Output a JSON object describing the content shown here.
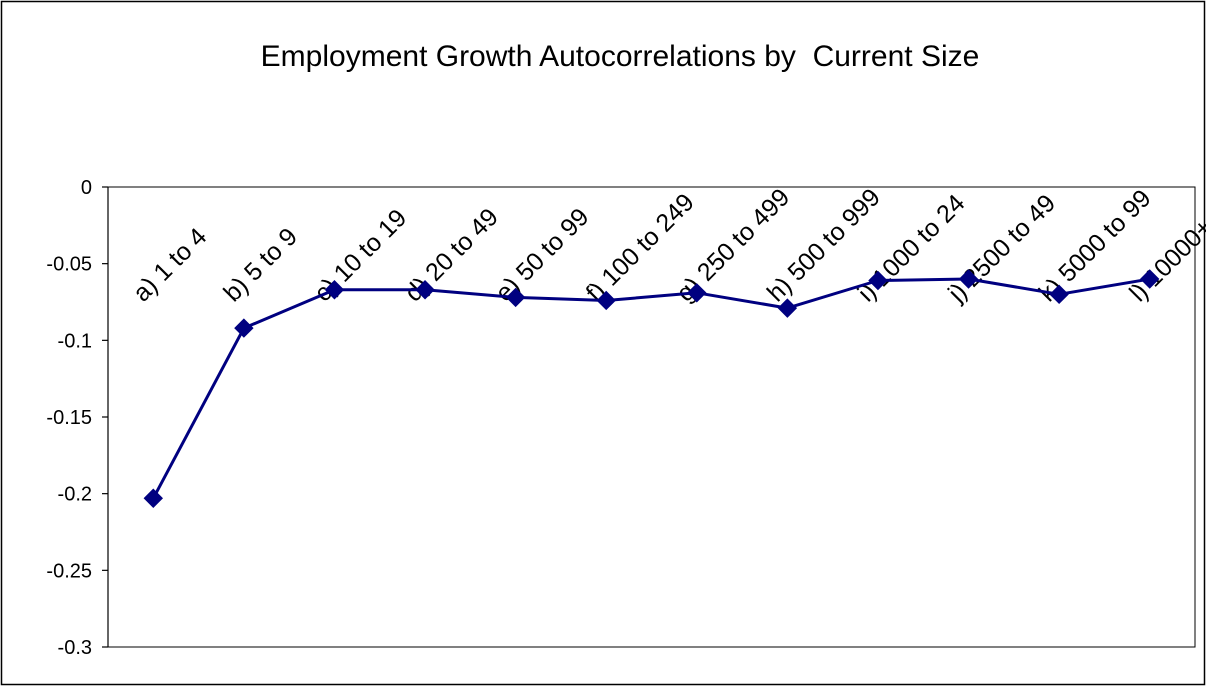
{
  "chart_data": {
    "type": "line",
    "title": "Employment Growth Autocorrelations by  Current Size",
    "xlabel": "",
    "ylabel": "",
    "ylim": [
      -0.3,
      0
    ],
    "yticks": [
      0,
      -0.05,
      -0.1,
      -0.15,
      -0.2,
      -0.25,
      -0.3
    ],
    "ytick_labels": [
      "0",
      "-0.05",
      "-0.1",
      "-0.15",
      "-0.2",
      "-0.25",
      "-0.3"
    ],
    "categories": [
      "a) 1 to 4",
      "b) 5 to 9",
      "c) 10 to 19",
      "d) 20 to 49",
      "e) 50 to 99",
      "f) 100 to 249",
      "g) 250 to 499",
      "h) 500 to 999",
      "i) 1000 to 24",
      "j) 2500 to 49",
      "k) 5000 to 99",
      "l) 10000+"
    ],
    "values": [
      -0.203,
      -0.092,
      -0.067,
      -0.067,
      -0.072,
      -0.074,
      -0.069,
      -0.079,
      -0.061,
      -0.06,
      -0.07,
      -0.06
    ],
    "grid": false,
    "legend": "none",
    "colors": {
      "series": "#000080",
      "axis": "#000000",
      "background": "#ffffff",
      "plot_border": "#000000"
    }
  }
}
